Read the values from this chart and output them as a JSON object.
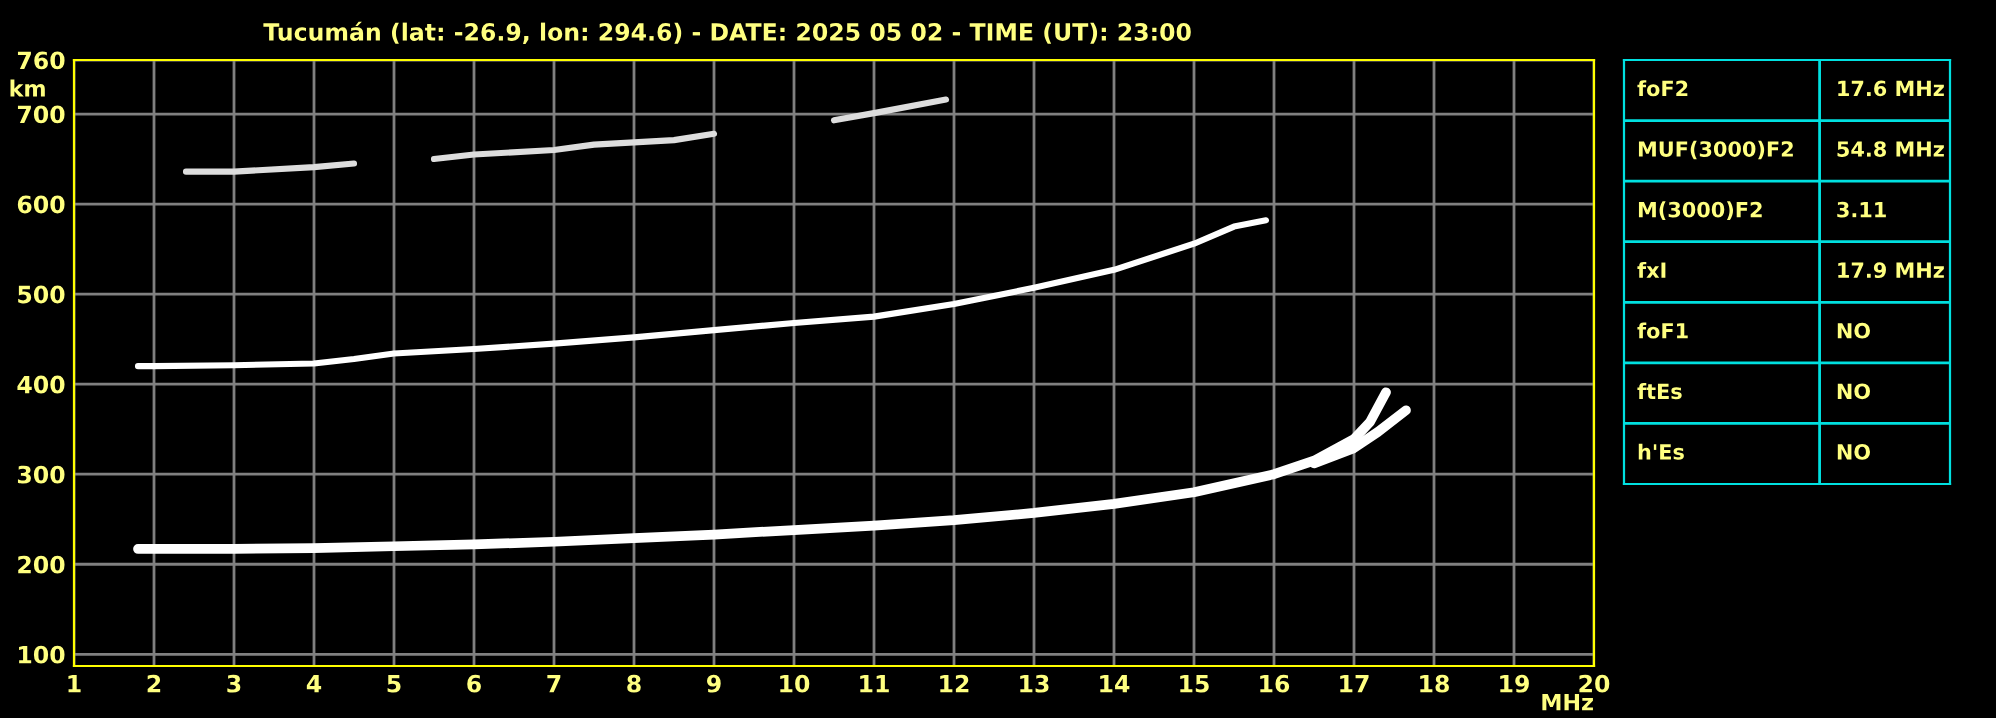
{
  "chart_data": [
    {
      "type": "line",
      "title": "Tucumán (lat: -26.9, lon: 294.6) - DATE: 2025 05 02 - TIME (UT): 23:00",
      "xlabel": "MHz",
      "ylabel": "km",
      "xlim": [
        1,
        20
      ],
      "xticks": [
        1,
        2,
        3,
        4,
        5,
        6,
        7,
        8,
        9,
        10,
        11,
        12,
        13,
        14,
        15,
        16,
        17,
        18,
        19,
        20
      ],
      "ylim": [
        87,
        760
      ],
      "yticks": [
        100,
        200,
        300,
        400,
        500,
        600,
        700,
        760
      ],
      "grid": true,
      "legend": false,
      "marker": "none",
      "line_style": "solid",
      "series": [
        {
          "color": "#ffffff",
          "x": [
            1.8,
            2,
            3,
            4,
            5,
            6,
            7,
            8,
            9,
            10,
            11,
            12,
            13,
            14,
            15,
            16,
            16.5,
            17,
            17.2,
            17.4
          ],
          "values": [
            217,
            217,
            217,
            218,
            220,
            222,
            225,
            229,
            233,
            238,
            243,
            249,
            257,
            267,
            280,
            300,
            315,
            339,
            358,
            391
          ]
        },
        {
          "color": "#ffffff",
          "x": [
            16.5,
            17,
            17.3,
            17.65
          ],
          "values": [
            312,
            329,
            347,
            371
          ]
        },
        {
          "color": "#ffffff",
          "x": [
            1.8,
            2,
            3,
            4,
            4.5,
            5,
            6,
            7,
            8,
            9,
            10,
            11,
            12,
            13,
            14,
            15,
            15.5,
            15.9
          ],
          "values": [
            420,
            420,
            421,
            423,
            428,
            434,
            439,
            445,
            452,
            460,
            468,
            475,
            489,
            507,
            527,
            556,
            575,
            582
          ]
        },
        {
          "color": "#dddddd",
          "x": [
            2.4,
            3,
            4,
            4.5,
            5,
            5.5,
            6,
            7,
            7.5,
            8.5,
            9,
            10,
            10.5,
            11,
            11.9
          ],
          "values": [
            636,
            636,
            641,
            645,
            null,
            650,
            655,
            660,
            666,
            671,
            678,
            null,
            693,
            701,
            716
          ]
        }
      ]
    },
    {
      "type": "other",
      "annotations": [
        "foF2",
        "17.6 MHz",
        "MUF(3000)F2",
        "54.8 MHz",
        "M(3000)F2",
        "3.11",
        "fxI",
        "17.9 MHz",
        "foF1",
        "NO",
        "ftEs",
        "NO",
        "h'Es",
        "NO"
      ]
    }
  ]
}
